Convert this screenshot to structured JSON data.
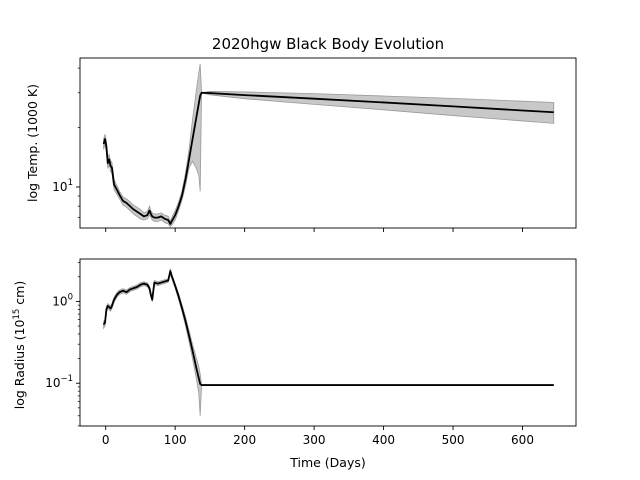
{
  "chart_data": [
    {
      "type": "line",
      "title": "2020hgw Black Body Evolution",
      "xlabel": "",
      "ylabel": "log Temp. (1000 K)",
      "yscale": "log",
      "xlim": [
        -37,
        677
      ],
      "ylim": [
        6.2,
        45
      ],
      "x_ticks": [
        0,
        100,
        200,
        300,
        400,
        500,
        600
      ],
      "x_tick_labels_shown": false,
      "y_ticks": [
        10
      ],
      "y_tick_labels": [
        "10^1"
      ],
      "grid": false,
      "legend": "none",
      "line_color": "#000000",
      "band_color": "#c8c8c8",
      "series": [
        {
          "x": [
            -3,
            -1,
            1,
            3,
            5,
            7,
            9,
            12,
            16,
            20,
            25,
            30,
            35,
            40,
            45,
            50,
            55,
            60,
            63,
            65,
            67,
            70,
            75,
            80,
            85,
            90,
            93,
            95,
            100,
            105,
            110,
            115,
            120,
            125,
            130,
            134,
            136,
            138,
            150,
            200,
            300,
            400,
            500,
            600,
            645
          ],
          "y": [
            16.5,
            17.5,
            16.0,
            13.2,
            13.8,
            12.8,
            12.5,
            10.3,
            9.7,
            9.1,
            8.5,
            8.3,
            8.0,
            7.7,
            7.5,
            7.3,
            7.1,
            7.2,
            7.6,
            7.3,
            7.1,
            7.0,
            7.0,
            7.1,
            6.9,
            6.8,
            6.5,
            6.7,
            7.2,
            8.0,
            9.1,
            11.0,
            13.8,
            17.5,
            22.0,
            26.5,
            29.0,
            30.0,
            29.9,
            29.2,
            28.0,
            26.8,
            25.6,
            24.4,
            23.9
          ],
          "y_low": [
            15.5,
            16.5,
            15.0,
            12.4,
            13.0,
            12.0,
            11.7,
            9.7,
            9.2,
            8.7,
            8.1,
            7.9,
            7.6,
            7.3,
            7.1,
            6.9,
            6.8,
            6.9,
            7.2,
            7.0,
            6.8,
            6.7,
            6.7,
            6.8,
            6.6,
            6.5,
            6.3,
            6.4,
            6.8,
            7.6,
            8.6,
            10.2,
            12.5,
            13.5,
            12.5,
            11.5,
            9.5,
            30.0,
            29.3,
            28.0,
            26.2,
            24.6,
            23.0,
            21.6,
            21.0
          ],
          "y_high": [
            17.5,
            18.5,
            17.0,
            14.0,
            14.6,
            13.6,
            13.3,
            10.9,
            10.2,
            9.5,
            8.9,
            8.7,
            8.4,
            8.1,
            7.9,
            7.7,
            7.4,
            7.5,
            8.0,
            7.6,
            7.4,
            7.3,
            7.3,
            7.4,
            7.2,
            7.1,
            6.7,
            7.0,
            7.6,
            8.4,
            9.6,
            11.8,
            15.5,
            22.0,
            30.0,
            38.0,
            42.0,
            30.0,
            30.5,
            30.3,
            29.7,
            28.9,
            28.1,
            27.2,
            26.8
          ]
        }
      ]
    },
    {
      "type": "line",
      "title": "",
      "xlabel": "Time (Days)",
      "ylabel": "log Radius (10^15 cm)",
      "yscale": "log",
      "xlim": [
        -37,
        677
      ],
      "ylim": [
        0.03,
        3.3
      ],
      "x_ticks": [
        0,
        100,
        200,
        300,
        400,
        500,
        600
      ],
      "x_tick_labels": [
        "0",
        "100",
        "200",
        "300",
        "400",
        "500",
        "600"
      ],
      "y_ticks": [
        1,
        0.1
      ],
      "y_tick_labels": [
        "10^0",
        "10^-1"
      ],
      "grid": false,
      "legend": "none",
      "line_color": "#000000",
      "band_color": "#c8c8c8",
      "series": [
        {
          "x": [
            -3,
            -1,
            1,
            3,
            5,
            7,
            9,
            12,
            16,
            20,
            25,
            30,
            35,
            40,
            45,
            50,
            55,
            60,
            63,
            65,
            67,
            70,
            75,
            80,
            85,
            90,
            93,
            95,
            100,
            105,
            110,
            115,
            120,
            125,
            130,
            134,
            136,
            138,
            150,
            200,
            300,
            400,
            500,
            600,
            645
          ],
          "y": [
            0.52,
            0.55,
            0.8,
            0.88,
            0.85,
            0.82,
            0.88,
            1.05,
            1.2,
            1.3,
            1.35,
            1.3,
            1.4,
            1.45,
            1.5,
            1.6,
            1.65,
            1.6,
            1.45,
            1.2,
            1.05,
            1.7,
            1.65,
            1.7,
            1.75,
            1.8,
            2.35,
            2.05,
            1.55,
            1.15,
            0.82,
            0.57,
            0.38,
            0.25,
            0.16,
            0.115,
            0.098,
            0.095,
            0.095,
            0.095,
            0.095,
            0.095,
            0.095,
            0.095,
            0.095
          ],
          "y_low": [
            0.47,
            0.5,
            0.74,
            0.82,
            0.79,
            0.76,
            0.82,
            0.98,
            1.12,
            1.22,
            1.27,
            1.22,
            1.32,
            1.37,
            1.42,
            1.51,
            1.56,
            1.51,
            1.37,
            1.13,
            0.99,
            1.6,
            1.56,
            1.61,
            1.66,
            1.71,
            2.2,
            1.94,
            1.45,
            1.05,
            0.74,
            0.5,
            0.32,
            0.2,
            0.12,
            0.075,
            0.04,
            0.095,
            0.095,
            0.095,
            0.095,
            0.095,
            0.095,
            0.095,
            0.095
          ],
          "y_high": [
            0.57,
            0.6,
            0.86,
            0.94,
            0.91,
            0.88,
            0.94,
            1.12,
            1.28,
            1.38,
            1.43,
            1.38,
            1.48,
            1.53,
            1.58,
            1.69,
            1.74,
            1.69,
            1.53,
            1.27,
            1.11,
            1.8,
            1.74,
            1.79,
            1.84,
            1.89,
            2.5,
            2.16,
            1.65,
            1.25,
            0.9,
            0.64,
            0.44,
            0.3,
            0.21,
            0.16,
            0.13,
            0.095,
            0.095,
            0.095,
            0.095,
            0.095,
            0.095,
            0.095,
            0.095
          ]
        }
      ]
    }
  ]
}
